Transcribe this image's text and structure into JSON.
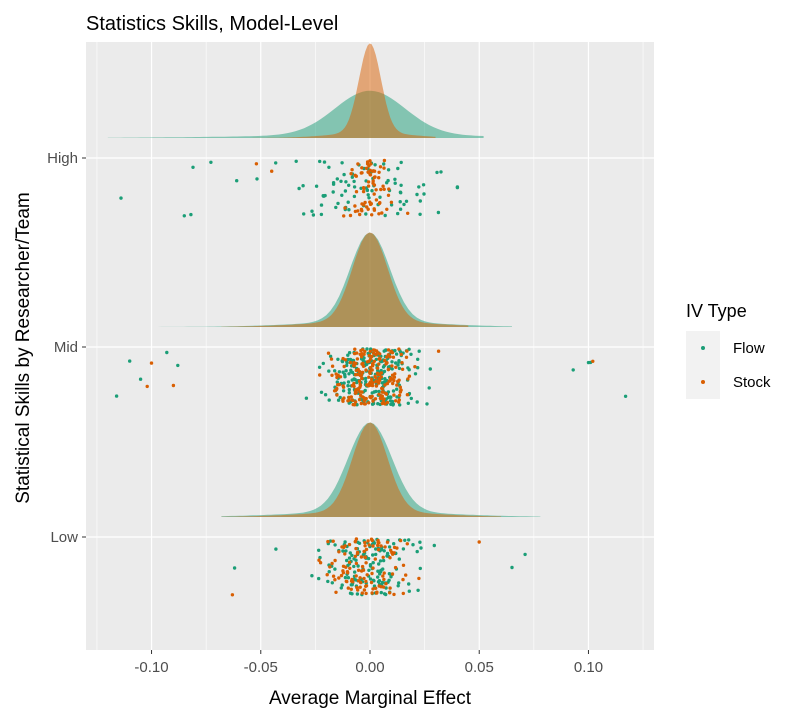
{
  "chart_data": {
    "type": "scatter",
    "subtype": "raincloud (density ridges + jittered points)",
    "title": "Statistics Skills, Model-Level",
    "xlabel": "Average Marginal Effect",
    "ylabel": "Statistical Skills by Researcher/Team",
    "xlim": [
      -0.13,
      0.13
    ],
    "x_ticks": [
      -0.1,
      -0.05,
      0.0,
      0.05,
      0.1
    ],
    "x_tick_labels": [
      "-0.10",
      "-0.05",
      "0.00",
      "0.05",
      "0.10"
    ],
    "categories": [
      "High",
      "Mid",
      "Low"
    ],
    "grid": true,
    "legend": {
      "title": "IV Type",
      "position": "right",
      "entries": [
        "Flow",
        "Stock"
      ]
    },
    "series": [
      {
        "name": "Flow",
        "color": "#1b9e77",
        "density": {
          "High": {
            "sd": 0.016,
            "range": [
              -0.12,
              0.052
            ]
          },
          "Mid": {
            "sd": 0.009,
            "range": [
              -0.113,
              0.065
            ]
          },
          "Low": {
            "sd": 0.01,
            "range": [
              -0.068,
              0.078
            ]
          }
        },
        "points": {
          "High": {
            "count": 95,
            "min": -0.114,
            "max": 0.04,
            "outliers": [
              -0.114,
              -0.085,
              -0.082,
              -0.081,
              -0.061
            ]
          },
          "Mid": {
            "count": 260,
            "min": -0.116,
            "max": 0.117,
            "outliers": [
              -0.116,
              -0.11,
              -0.105,
              -0.093,
              -0.088,
              0.093,
              0.1,
              0.101,
              0.117
            ]
          },
          "Low": {
            "count": 150,
            "min": -0.062,
            "max": 0.071,
            "outliers": [
              -0.062,
              0.065,
              0.071
            ]
          }
        }
      },
      {
        "name": "Stock",
        "color": "#d95f02",
        "density": {
          "High": {
            "sd": 0.005,
            "range": [
              -0.055,
              0.03
            ]
          },
          "Mid": {
            "sd": 0.008,
            "range": [
              -0.068,
              0.045
            ]
          },
          "Low": {
            "sd": 0.008,
            "range": [
              -0.068,
              0.06
            ]
          }
        },
        "points": {
          "High": {
            "count": 75,
            "min": -0.052,
            "max": 0.03,
            "outliers": [
              -0.052,
              -0.045
            ]
          },
          "Mid": {
            "count": 220,
            "min": -0.102,
            "max": 0.102,
            "outliers": [
              -0.102,
              -0.1,
              -0.09,
              0.102
            ]
          },
          "Low": {
            "count": 120,
            "min": -0.063,
            "max": 0.05,
            "outliers": [
              -0.063,
              0.05
            ]
          }
        }
      }
    ]
  },
  "colors": {
    "panel_background": "#ebebeb",
    "grid_major": "#ffffff",
    "flow": "#1b9e77",
    "stock": "#d95f02",
    "legend_key_background": "#f2f2f2"
  }
}
